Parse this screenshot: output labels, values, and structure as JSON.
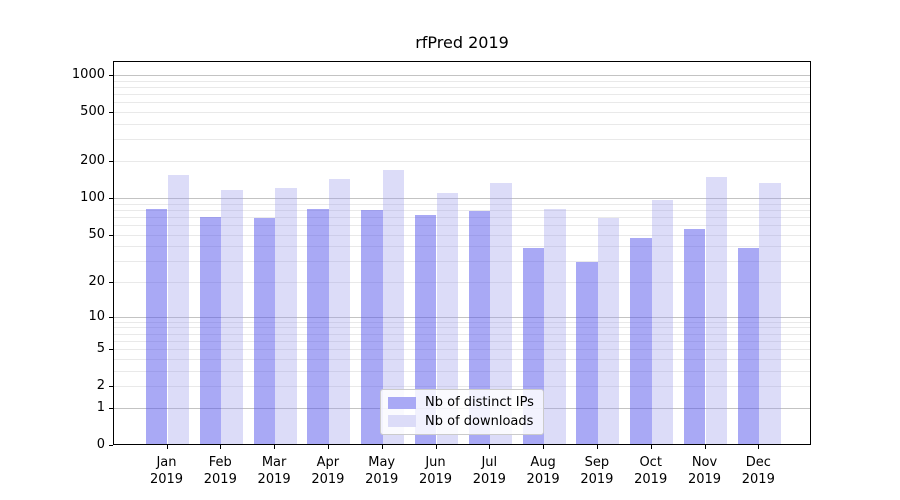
{
  "title": "rfPred 2019",
  "chart_data": {
    "type": "bar",
    "title": "rfPred 2019",
    "x_months": [
      "Jan",
      "Feb",
      "Mar",
      "Apr",
      "May",
      "Jun",
      "Jul",
      "Aug",
      "Sep",
      "Oct",
      "Nov",
      "Dec"
    ],
    "x_year": "2019",
    "categories": [
      "Jan 2019",
      "Feb 2019",
      "Mar 2019",
      "Apr 2019",
      "May 2019",
      "Jun 2019",
      "Jul 2019",
      "Aug 2019",
      "Sep 2019",
      "Oct 2019",
      "Nov 2019",
      "Dec 2019"
    ],
    "series": [
      {
        "name": "Nb of distinct IPs",
        "color": "#a9a9f5",
        "fill": "rgba(83,83,235,0.5)",
        "values": [
          80,
          68,
          67,
          80,
          78,
          71,
          77,
          38,
          29,
          46,
          54,
          38
        ]
      },
      {
        "name": "Nb of downloads",
        "color": "#dcdcf8",
        "fill": "rgba(155,155,235,0.35)",
        "values": [
          150,
          115,
          118,
          140,
          165,
          107,
          130,
          79,
          67,
          94,
          145,
          130
        ]
      }
    ],
    "yscale": "log1p",
    "y_ticks": [
      0,
      1,
      2,
      5,
      10,
      20,
      50,
      100,
      200,
      500,
      1000
    ],
    "y_major_gridlines": [
      1,
      10,
      100,
      1000
    ],
    "y_minor_gridlines": [
      3,
      4,
      6,
      7,
      8,
      9,
      30,
      40,
      60,
      70,
      80,
      90,
      300,
      400,
      600,
      700,
      800,
      900
    ],
    "ylim": [
      0,
      1280
    ],
    "grid": true,
    "legend_position": "lower-center"
  },
  "colors": {
    "bar_distinct_ips": "#a9a9f5",
    "bar_downloads": "#dcdcf8",
    "grid_major": "#c3c3c3",
    "grid_minor": "#e9e9e9",
    "spine": "#000000",
    "background": "#ffffff"
  }
}
